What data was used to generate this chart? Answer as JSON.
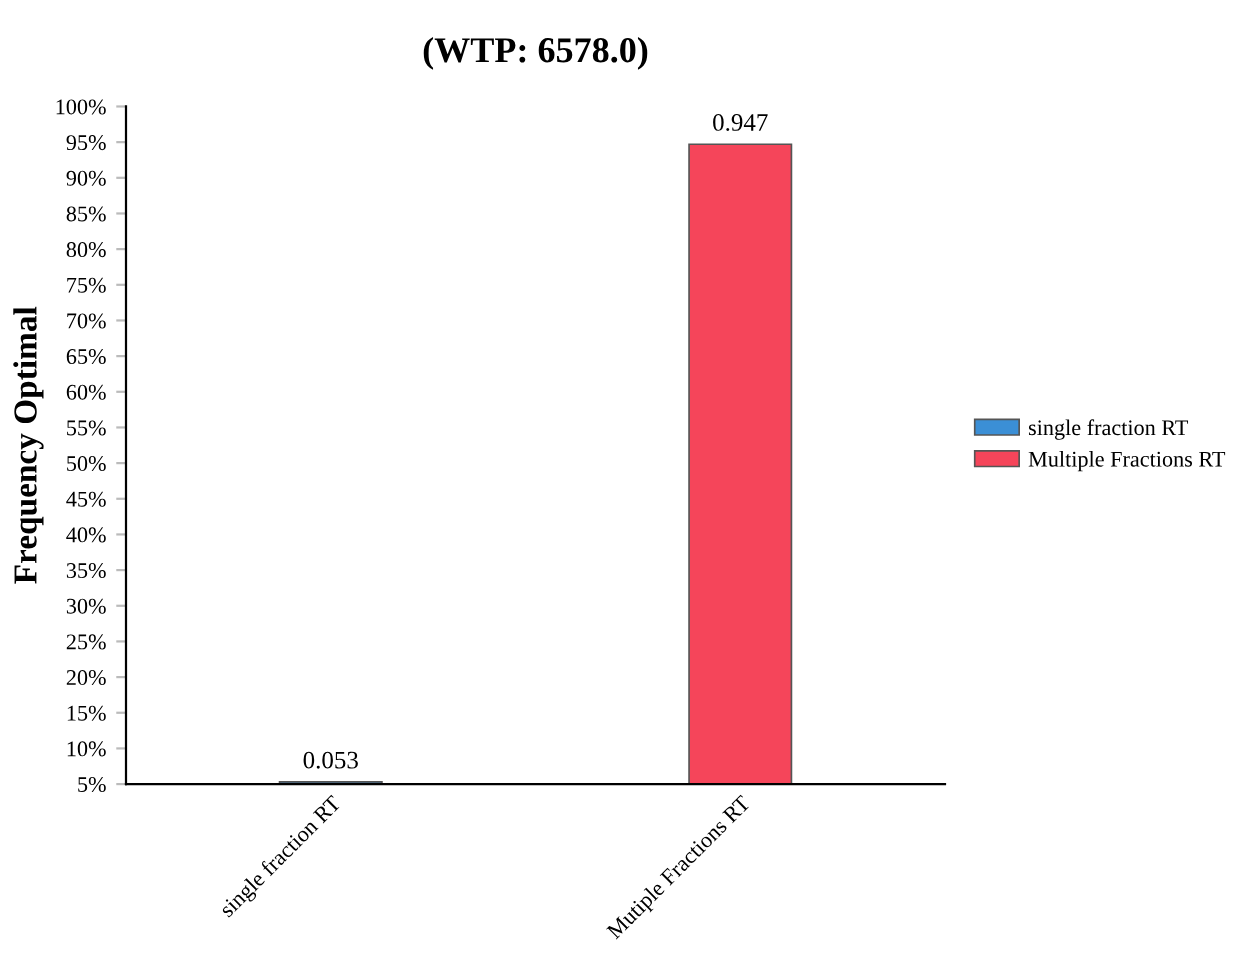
{
  "chart_data": {
    "type": "bar",
    "title": "(WTP: 6578.0)",
    "ylabel": "Frequency Optimal",
    "categories": [
      "single fraction RT",
      "Mutiple Fractions RT"
    ],
    "series": [
      {
        "name": "single fraction RT",
        "color": "#3b8fd6",
        "values": [
          0.053,
          null
        ]
      },
      {
        "name": "Multiple Fractions RT",
        "color": "#f5455a",
        "values": [
          null,
          0.947
        ]
      }
    ],
    "ylim": [
      0.05,
      1.0
    ],
    "yticks": [
      {
        "value": 0.05,
        "label": "5%"
      },
      {
        "value": 0.1,
        "label": "10%"
      },
      {
        "value": 0.15,
        "label": "15%"
      },
      {
        "value": 0.2,
        "label": "20%"
      },
      {
        "value": 0.25,
        "label": "25%"
      },
      {
        "value": 0.3,
        "label": "30%"
      },
      {
        "value": 0.35,
        "label": "35%"
      },
      {
        "value": 0.4,
        "label": "40%"
      },
      {
        "value": 0.45,
        "label": "45%"
      },
      {
        "value": 0.5,
        "label": "50%"
      },
      {
        "value": 0.55,
        "label": "55%"
      },
      {
        "value": 0.6,
        "label": "60%"
      },
      {
        "value": 0.65,
        "label": "65%"
      },
      {
        "value": 0.7,
        "label": "70%"
      },
      {
        "value": 0.75,
        "label": "75%"
      },
      {
        "value": 0.8,
        "label": "80%"
      },
      {
        "value": 0.85,
        "label": "85%"
      },
      {
        "value": 0.9,
        "label": "90%"
      },
      {
        "value": 0.95,
        "label": "95%"
      },
      {
        "value": 1.0,
        "label": "100%"
      }
    ],
    "data_labels": true,
    "legend": "right",
    "grid": false
  }
}
